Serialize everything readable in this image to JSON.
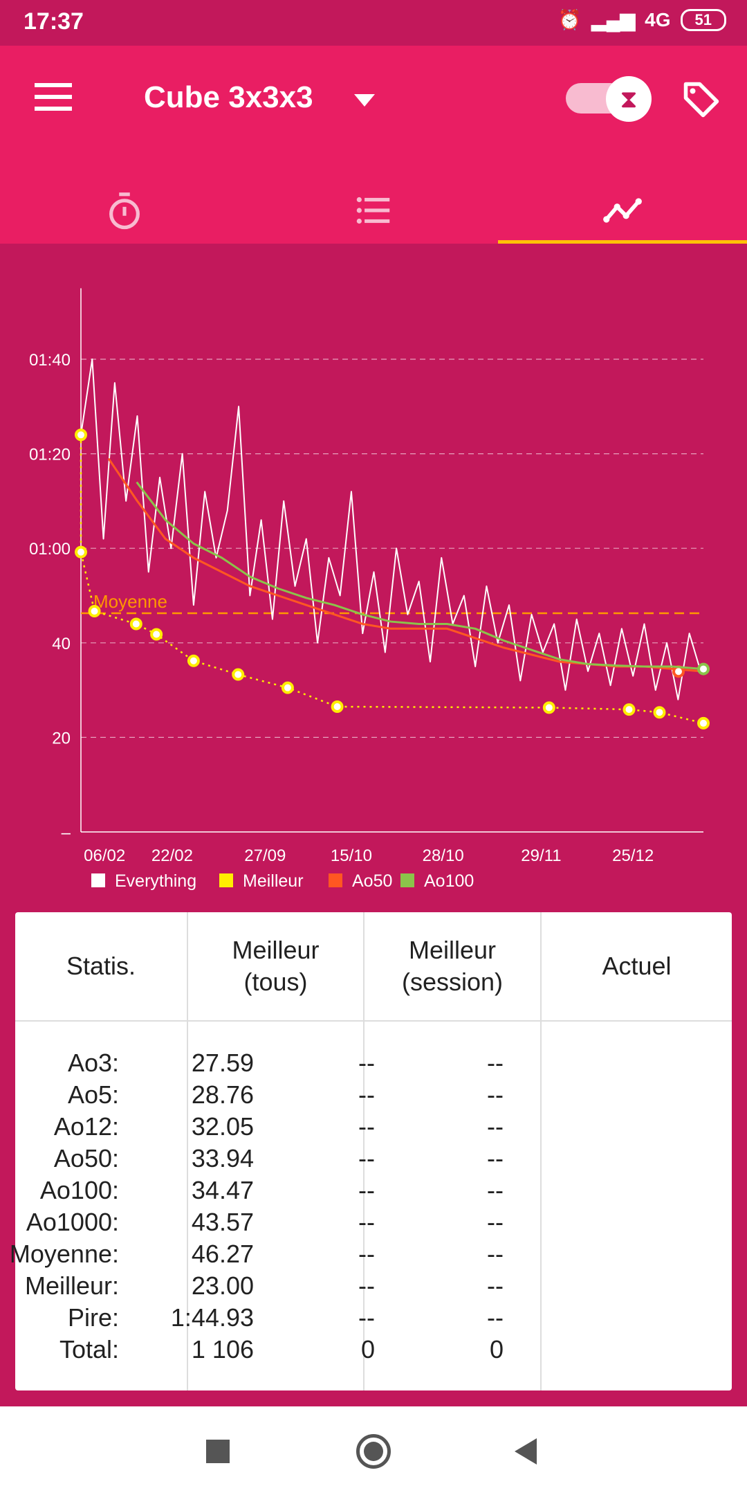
{
  "status_bar": {
    "time": "17:37",
    "network": "4G",
    "battery": "51"
  },
  "app_bar": {
    "title": "Cube 3x3x3",
    "menu_icon": "hamburger-menu-icon",
    "timer_toggle_icon": "hourglass-icon",
    "tag_icon": "tag-icon"
  },
  "tabs": [
    {
      "name": "timer",
      "icon": "stopwatch-icon",
      "active": false
    },
    {
      "name": "list",
      "icon": "list-icon",
      "active": false
    },
    {
      "name": "stats",
      "icon": "line-chart-icon",
      "active": true
    }
  ],
  "colors": {
    "status": "#C2185B",
    "appbar": "#E91E63",
    "accent": "#FFC107",
    "everything": "#FFFFFF",
    "meilleur": "#FFEE00",
    "ao50": "#FF5722",
    "ao100": "#8BC34A",
    "moyenne": "#FF9800"
  },
  "chart_data": {
    "type": "line",
    "xlabel": "",
    "ylabel": "",
    "x_unit": "solve index",
    "xlim": [
      0,
      1105
    ],
    "ylim": [
      0,
      115
    ],
    "y_ticks": [
      {
        "value": 0,
        "label": "–"
      },
      {
        "value": 20,
        "label": "20"
      },
      {
        "value": 40,
        "label": "40"
      },
      {
        "value": 60,
        "label": "01:00"
      },
      {
        "value": 80,
        "label": "01:20"
      },
      {
        "value": 100,
        "label": "01:40"
      }
    ],
    "x_ticks": [
      {
        "x": 42,
        "label": "06/02"
      },
      {
        "x": 162,
        "label": "22/02"
      },
      {
        "x": 327,
        "label": "27/09"
      },
      {
        "x": 480,
        "label": "15/10"
      },
      {
        "x": 643,
        "label": "28/10"
      },
      {
        "x": 817,
        "label": "29/11"
      },
      {
        "x": 980,
        "label": "25/12"
      }
    ],
    "grid": "horizontal dashed",
    "legend_position": "bottom-left",
    "reference_line": {
      "label": "Moyenne",
      "value": 46.27
    },
    "series": [
      {
        "name": "Everything",
        "color": "#FFFFFF",
        "x": [
          0,
          20,
          40,
          60,
          80,
          100,
          120,
          140,
          160,
          180,
          200,
          220,
          240,
          260,
          280,
          300,
          320,
          340,
          360,
          380,
          400,
          420,
          440,
          460,
          480,
          500,
          520,
          540,
          560,
          580,
          600,
          620,
          640,
          660,
          680,
          700,
          720,
          740,
          760,
          780,
          800,
          820,
          840,
          860,
          880,
          900,
          920,
          940,
          960,
          980,
          1000,
          1020,
          1040,
          1060,
          1080,
          1100
        ],
        "y": [
          84,
          100,
          62,
          95,
          70,
          88,
          55,
          75,
          60,
          80,
          48,
          72,
          58,
          68,
          90,
          50,
          66,
          45,
          70,
          52,
          62,
          40,
          58,
          50,
          72,
          42,
          55,
          38,
          60,
          46,
          53,
          36,
          58,
          44,
          50,
          35,
          52,
          40,
          48,
          32,
          46,
          38,
          44,
          30,
          45,
          34,
          42,
          31,
          43,
          33,
          44,
          30,
          40,
          28,
          42,
          34
        ]
      },
      {
        "name": "Meilleur",
        "color": "#FFEE00",
        "x": [
          0,
          0,
          24,
          98,
          134,
          200,
          279,
          367,
          455,
          831,
          973,
          1027,
          1105
        ],
        "y": [
          84.0,
          59.2,
          46.7,
          44.0,
          41.8,
          36.2,
          33.3,
          30.5,
          26.5,
          26.3,
          25.9,
          25.3,
          23.0
        ]
      },
      {
        "name": "Ao50",
        "color": "#FF5722",
        "x": [
          49,
          100,
          150,
          200,
          250,
          300,
          350,
          400,
          450,
          500,
          550,
          600,
          650,
          700,
          750,
          800,
          850,
          900,
          950,
          1000,
          1050,
          1105
        ],
        "y": [
          79,
          70,
          62,
          58,
          55,
          52,
          50,
          48,
          46,
          44,
          43,
          43,
          43,
          41,
          39,
          37.5,
          36,
          35.5,
          35,
          35,
          34.5,
          33.94
        ]
      },
      {
        "name": "Ao100",
        "color": "#8BC34A",
        "x": [
          99,
          150,
          200,
          250,
          300,
          350,
          400,
          450,
          500,
          550,
          600,
          650,
          700,
          750,
          800,
          850,
          900,
          950,
          1000,
          1050,
          1105
        ],
        "y": [
          74,
          66,
          61,
          58,
          54,
          51.5,
          49.5,
          48,
          46,
          44.5,
          44,
          44,
          43,
          40.5,
          38.5,
          36.5,
          35.5,
          35.2,
          35,
          35,
          34.47
        ]
      }
    ]
  },
  "stats_table": {
    "headers": [
      "Statis.",
      "Meilleur\n(tous)",
      "Meilleur\n(session)",
      "Actuel"
    ],
    "rows": [
      [
        "Ao3:",
        "27.59",
        "--",
        "--"
      ],
      [
        "Ao5:",
        "28.76",
        "--",
        "--"
      ],
      [
        "Ao12:",
        "32.05",
        "--",
        "--"
      ],
      [
        "Ao50:",
        "33.94",
        "--",
        "--"
      ],
      [
        "Ao100:",
        "34.47",
        "--",
        "--"
      ],
      [
        "Ao1000:",
        "43.57",
        "--",
        "--"
      ],
      [
        "Moyenne:",
        "46.27",
        "--",
        "--"
      ],
      [
        "Meilleur:",
        "23.00",
        "--",
        "--"
      ],
      [
        "Pire:",
        "1:44.93",
        "--",
        "--"
      ],
      [
        "Total:",
        "1 106",
        "0",
        "0"
      ]
    ]
  },
  "nav_bar": {
    "buttons": [
      "recents-square-icon",
      "home-circle-icon",
      "back-triangle-icon"
    ]
  }
}
